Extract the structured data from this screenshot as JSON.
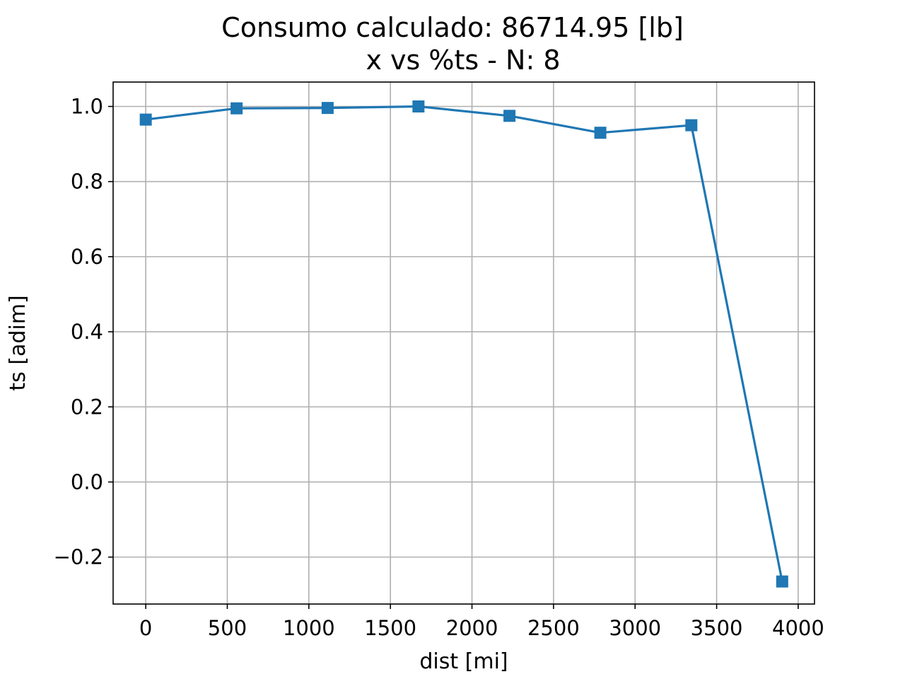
{
  "chart_data": {
    "type": "line",
    "title": "Consumo calculado: 86714.95 [lb]",
    "subtitle": "x vs %ts - N: 8",
    "xlabel": "dist [mi]",
    "ylabel": "ts [adim]",
    "xlim": [
      -200,
      4100
    ],
    "ylim": [
      -0.325,
      1.065
    ],
    "xticks": [
      0,
      500,
      1000,
      1500,
      2000,
      2500,
      3000,
      3500,
      4000
    ],
    "xtick_labels": [
      "0",
      "500",
      "1000",
      "1500",
      "2000",
      "2500",
      "3000",
      "3500",
      "4000"
    ],
    "yticks": [
      -0.2,
      0.0,
      0.2,
      0.4,
      0.6,
      0.8,
      1.0
    ],
    "ytick_labels": [
      "−0.2",
      "0.0",
      "0.2",
      "0.4",
      "0.6",
      "0.8",
      "1.0"
    ],
    "grid": true,
    "legend": "none",
    "series": [
      {
        "marker": "square",
        "color": "#1f77b4",
        "x": [
          0,
          557,
          1115,
          1672,
          2230,
          2787,
          3345,
          3902
        ],
        "y": [
          0.965,
          0.995,
          0.996,
          1.0,
          0.975,
          0.93,
          0.95,
          -0.265
        ]
      }
    ]
  }
}
